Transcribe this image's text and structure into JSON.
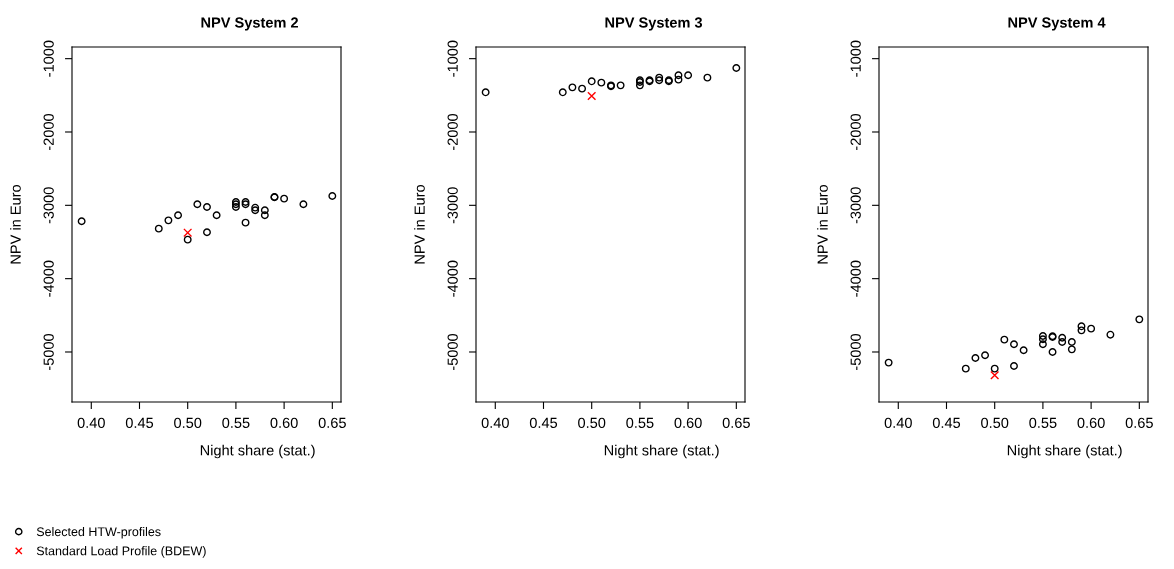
{
  "chart_data": [
    {
      "type": "scatter",
      "title": "NPV System 2",
      "xlabel": "Night share (stat.)",
      "ylabel": "NPV in Euro",
      "xlim": [
        0.38,
        0.659
      ],
      "ylim": [
        -5682,
        -841
      ],
      "xticks": [
        {
          "value": 0.4,
          "label": "0.40"
        },
        {
          "value": 0.45,
          "label": "0.45"
        },
        {
          "value": 0.5,
          "label": "0.50"
        },
        {
          "value": 0.55,
          "label": "0.55"
        },
        {
          "value": 0.6,
          "label": "0.60"
        },
        {
          "value": 0.65,
          "label": "0.65"
        }
      ],
      "yticks": [
        -1000,
        -2000,
        -3000,
        -4000,
        -5000
      ],
      "grid": false,
      "legend": "bottom left",
      "series": [
        {
          "name": "Selected HTW-profiles",
          "color": "#000000",
          "marker": "circle",
          "x": [
            0.39,
            0.47,
            0.48,
            0.49,
            0.5,
            0.51,
            0.52,
            0.52,
            0.53,
            0.55,
            0.55,
            0.55,
            0.56,
            0.56,
            0.56,
            0.57,
            0.57,
            0.58,
            0.58,
            0.59,
            0.59,
            0.6,
            0.62,
            0.65
          ],
          "values": [
            -3218,
            -3318,
            -3205,
            -3136,
            -3468,
            -2986,
            -3023,
            -3368,
            -3136,
            -2955,
            -2986,
            -3023,
            -2955,
            -2986,
            -3236,
            -3032,
            -3068,
            -3068,
            -3136,
            -2886,
            -2890,
            -2909,
            -2986,
            -2873
          ]
        },
        {
          "name": "Standard Load Profile (BDEW)",
          "color": "#ff0000",
          "marker": "cross",
          "x": [
            0.5
          ],
          "values": [
            -3373
          ]
        }
      ]
    },
    {
      "type": "scatter",
      "title": "NPV System 3",
      "xlabel": "Night share (stat.)",
      "ylabel": "NPV in Euro",
      "xlim": [
        0.38,
        0.659
      ],
      "ylim": [
        -5682,
        -841
      ],
      "xticks": [
        {
          "value": 0.4,
          "label": "0.40"
        },
        {
          "value": 0.45,
          "label": "0.45"
        },
        {
          "value": 0.5,
          "label": "0.50"
        },
        {
          "value": 0.55,
          "label": "0.55"
        },
        {
          "value": 0.6,
          "label": "0.60"
        },
        {
          "value": 0.65,
          "label": "0.65"
        }
      ],
      "yticks": [
        -1000,
        -2000,
        -3000,
        -4000,
        -5000
      ],
      "grid": false,
      "series": [
        {
          "color": "#000000",
          "marker": "circle",
          "x": [
            0.39,
            0.47,
            0.48,
            0.49,
            0.5,
            0.51,
            0.52,
            0.52,
            0.53,
            0.55,
            0.55,
            0.55,
            0.56,
            0.56,
            0.57,
            0.57,
            0.58,
            0.58,
            0.59,
            0.59,
            0.6,
            0.62,
            0.65
          ],
          "values": [
            -1459,
            -1459,
            -1391,
            -1409,
            -1309,
            -1327,
            -1364,
            -1377,
            -1364,
            -1295,
            -1318,
            -1364,
            -1295,
            -1309,
            -1259,
            -1295,
            -1295,
            -1309,
            -1227,
            -1286,
            -1227,
            -1259,
            -1127
          ]
        },
        {
          "color": "#ff0000",
          "marker": "cross",
          "x": [
            0.5
          ],
          "values": [
            -1509
          ]
        }
      ]
    },
    {
      "type": "scatter",
      "title": "NPV System 4",
      "xlabel": "Night share (stat.)",
      "ylabel": "NPV in Euro",
      "xlim": [
        0.38,
        0.659
      ],
      "ylim": [
        -5682,
        -841
      ],
      "xticks": [
        {
          "value": 0.4,
          "label": "0.40"
        },
        {
          "value": 0.45,
          "label": "0.45"
        },
        {
          "value": 0.5,
          "label": "0.50"
        },
        {
          "value": 0.55,
          "label": "0.55"
        },
        {
          "value": 0.6,
          "label": "0.60"
        },
        {
          "value": 0.65,
          "label": "0.65"
        }
      ],
      "yticks": [
        -1000,
        -2000,
        -3000,
        -4000,
        -5000
      ],
      "grid": false,
      "series": [
        {
          "color": "#000000",
          "marker": "circle",
          "x": [
            0.39,
            0.47,
            0.48,
            0.49,
            0.5,
            0.51,
            0.52,
            0.52,
            0.53,
            0.55,
            0.55,
            0.55,
            0.56,
            0.56,
            0.56,
            0.57,
            0.57,
            0.58,
            0.58,
            0.59,
            0.59,
            0.6,
            0.62,
            0.65
          ],
          "values": [
            -5145,
            -5227,
            -5082,
            -5045,
            -5227,
            -4832,
            -4895,
            -5191,
            -4977,
            -4782,
            -4827,
            -4895,
            -4786,
            -4795,
            -5000,
            -4805,
            -4864,
            -4864,
            -4964,
            -4650,
            -4705,
            -4682,
            -4764,
            -4555
          ]
        },
        {
          "color": "#ff0000",
          "marker": "cross",
          "x": [
            0.5
          ],
          "values": [
            -5318
          ]
        }
      ]
    }
  ]
}
